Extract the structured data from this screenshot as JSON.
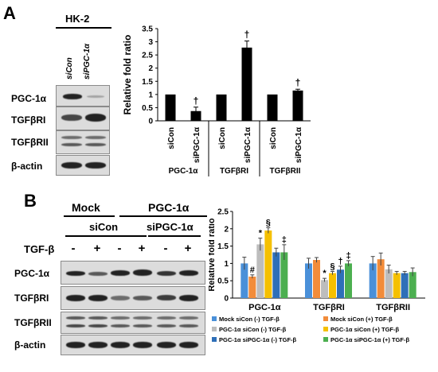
{
  "panelA": {
    "letter": "A",
    "cell_line": "HK-2",
    "lanes": [
      "siCon",
      "siPGC-1α"
    ],
    "rows": [
      "PGC-1α",
      "TGFβRI",
      "TGFβRII",
      "β-actin"
    ],
    "chart_data": {
      "type": "bar",
      "ylabel": "Relative fold ratio",
      "ylim": [
        0,
        3.5
      ],
      "yticks": [
        0,
        0.5,
        1,
        1.5,
        2,
        2.5,
        3,
        3.5
      ],
      "groups": [
        {
          "name": "PGC-1α",
          "categories": [
            "siCon",
            "siPGC-1α"
          ],
          "values": [
            1.0,
            0.37
          ],
          "errors": [
            0,
            0.15
          ],
          "marks": [
            "",
            "†"
          ]
        },
        {
          "name": "TGFβRI",
          "categories": [
            "siCon",
            "siPGC-1α"
          ],
          "values": [
            1.0,
            2.78
          ],
          "errors": [
            0,
            0.25
          ],
          "marks": [
            "",
            "†"
          ]
        },
        {
          "name": "TGFβRII",
          "categories": [
            "siCon",
            "siPGC-1α"
          ],
          "values": [
            1.0,
            1.15
          ],
          "errors": [
            0,
            0.05
          ],
          "marks": [
            "",
            "†"
          ]
        }
      ],
      "bar_color": "#000000"
    }
  },
  "panelB": {
    "letter": "B",
    "header_mock": "Mock",
    "header_pgc": "PGC-1α",
    "sub_sicon": "siCon",
    "sub_sipgc": "siPGC-1α",
    "tgf_label": "TGF-β",
    "signs": [
      "-",
      "+",
      "-",
      "+",
      "-",
      "+"
    ],
    "rows": [
      "PGC-1α",
      "TGFβRI",
      "TGFβRII",
      "β-actin"
    ],
    "chart_data": {
      "type": "bar",
      "ylabel": "Relative fold ratio",
      "ylim": [
        0,
        2.5
      ],
      "yticks": [
        0,
        0.5,
        1,
        1.5,
        2,
        2.5
      ],
      "categories": [
        "PGC-1α",
        "TGFβRI",
        "TGFβRII"
      ],
      "series": [
        {
          "name": "Mock siCon (-) TGF-β",
          "color": "#4a90d9",
          "values": [
            1.0,
            1.0,
            1.0
          ],
          "errors": [
            0.18,
            0.15,
            0.2
          ],
          "marks": [
            "",
            "",
            ""
          ]
        },
        {
          "name": "Mock siCon (+) TGF-β",
          "color": "#f28c3a",
          "values": [
            0.62,
            1.1,
            1.12
          ],
          "errors": [
            0.05,
            0.07,
            0.18
          ],
          "marks": [
            "#",
            "",
            ""
          ]
        },
        {
          "name": "PGC-1α siCon (-) TGF-β",
          "color": "#bdbdbd",
          "values": [
            1.55,
            0.52,
            0.83
          ],
          "errors": [
            0.18,
            0.05,
            0.12
          ],
          "marks": [
            "*",
            "*",
            ""
          ]
        },
        {
          "name": "PGC-1α siCon (+) TGF-β",
          "color": "#f5c000",
          "values": [
            1.95,
            0.72,
            0.72
          ],
          "errors": [
            0.08,
            0.05,
            0.05
          ],
          "marks": [
            "§",
            "§",
            ""
          ]
        },
        {
          "name": "PGC-1α siPGC-1α (-) TGF-β",
          "color": "#2e6fb8",
          "values": [
            1.32,
            0.82,
            0.72
          ],
          "errors": [
            0.12,
            0.1,
            0.05
          ],
          "marks": [
            "",
            "†",
            ""
          ]
        },
        {
          "name": "PGC-1α siPGC-1α (+) TGF-β",
          "color": "#4caf50",
          "values": [
            1.32,
            1.0,
            0.75
          ],
          "errors": [
            0.22,
            0.08,
            0.12
          ],
          "marks": [
            "‡",
            "‡",
            ""
          ]
        }
      ]
    }
  }
}
